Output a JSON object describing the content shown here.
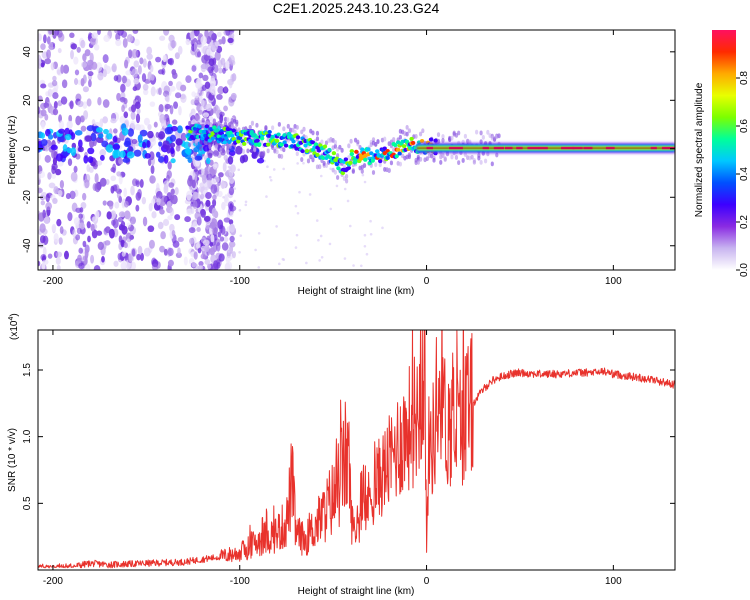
{
  "title": "C2E1.2025.243.10.23.G24",
  "chart_data": [
    {
      "type": "heatmap",
      "xlabel": "Height of straight line (km)",
      "ylabel": "Frequency (Hz)",
      "xlim": [
        -208,
        133
      ],
      "ylim": [
        -50,
        49
      ],
      "x_ticks": [
        -200,
        -100,
        0,
        100
      ],
      "x_tick_labels": [
        "-200",
        "-100",
        "0",
        "100"
      ],
      "y_ticks": [
        -40,
        -20,
        0,
        20,
        40
      ],
      "y_tick_labels": [
        "-40",
        "-20",
        "0",
        "20",
        "40"
      ],
      "ridge": [
        {
          "x": -125,
          "y": 7
        },
        {
          "x": -100,
          "y": 5
        },
        {
          "x": -80,
          "y": 4
        },
        {
          "x": -70,
          "y": 3
        },
        {
          "x": -60,
          "y": 0
        },
        {
          "x": -50,
          "y": -3
        },
        {
          "x": -44,
          "y": -8
        },
        {
          "x": -40,
          "y": -3
        },
        {
          "x": -30,
          "y": -3
        },
        {
          "x": -20,
          "y": -2
        },
        {
          "x": -15,
          "y": 0
        },
        {
          "x": -10,
          "y": 3
        },
        {
          "x": -5,
          "y": 0
        },
        {
          "x": 0,
          "y": 1
        },
        {
          "x": 10,
          "y": 0.5
        },
        {
          "x": 50,
          "y": 0.3
        },
        {
          "x": 100,
          "y": 0.3
        },
        {
          "x": 133,
          "y": 0.3
        }
      ],
      "colorbar": {
        "label": "Normalized spectral amplitude",
        "range": [
          0,
          1
        ],
        "ticks": [
          0.0,
          0.2,
          0.4,
          0.6,
          0.8
        ],
        "tick_labels": [
          "0.0",
          "0.2",
          "0.4",
          "0.6",
          "0.8"
        ],
        "colors": [
          "#ffffff",
          "#c8b4f0",
          "#8a2be2",
          "#3c00ff",
          "#0050ff",
          "#00c8ff",
          "#00ff9a",
          "#7cff00",
          "#e8ff00",
          "#ffaa00",
          "#ff2a00",
          "#ff1060"
        ]
      }
    },
    {
      "type": "line",
      "xlabel": "Height of straight line (km)",
      "ylabel": "SNR (10 * v/v)",
      "y_scale_label": "(x10",
      "y_scale_exp": "4",
      "y_scale_close": ")",
      "xlim": [
        -208,
        133
      ],
      "ylim": [
        0,
        18000
      ],
      "x_ticks": [
        -200,
        -100,
        0,
        100
      ],
      "x_tick_labels": [
        "-200",
        "-100",
        "0",
        "100"
      ],
      "y_ticks": [
        5000,
        10000,
        15000
      ],
      "y_tick_labels": [
        "0.5",
        "1.0",
        "1.5"
      ],
      "line_color": "#e8322c",
      "series": [
        {
          "name": "SNR",
          "points": [
            [
              -208,
              200
            ],
            [
              -190,
              250
            ],
            [
              -180,
              500
            ],
            [
              -170,
              400
            ],
            [
              -150,
              500
            ],
            [
              -130,
              600
            ],
            [
              -120,
              800
            ],
            [
              -110,
              1000
            ],
            [
              -100,
              1300
            ],
            [
              -90,
              2200
            ],
            [
              -80,
              2800
            ],
            [
              -75,
              3500
            ],
            [
              -72,
              6800
            ],
            [
              -70,
              2800
            ],
            [
              -65,
              2200
            ],
            [
              -60,
              3200
            ],
            [
              -55,
              4200
            ],
            [
              -52,
              5000
            ],
            [
              -48,
              5800
            ],
            [
              -45,
              7500
            ],
            [
              -42,
              9000
            ],
            [
              -40,
              3500
            ],
            [
              -38,
              3000
            ],
            [
              -35,
              4000
            ],
            [
              -30,
              5500
            ],
            [
              -25,
              7000
            ],
            [
              -20,
              8000
            ],
            [
              -15,
              9500
            ],
            [
              -10,
              10500
            ],
            [
              -6,
              11500
            ],
            [
              -3,
              13000
            ],
            [
              -1,
              17500
            ],
            [
              0,
              1000
            ],
            [
              1,
              9000
            ],
            [
              5,
              10500
            ],
            [
              8,
              15000
            ],
            [
              10,
              11000
            ],
            [
              15,
              10500
            ],
            [
              20,
              11500
            ],
            [
              25,
              12500
            ],
            [
              30,
              13500
            ],
            [
              35,
              14200
            ],
            [
              40,
              14500
            ],
            [
              45,
              14700
            ],
            [
              50,
              14800
            ],
            [
              60,
              14700
            ],
            [
              70,
              14700
            ],
            [
              80,
              14800
            ],
            [
              90,
              14800
            ],
            [
              95,
              14900
            ],
            [
              100,
              14700
            ],
            [
              110,
              14500
            ],
            [
              120,
              14300
            ],
            [
              133,
              13900
            ]
          ]
        }
      ]
    }
  ]
}
